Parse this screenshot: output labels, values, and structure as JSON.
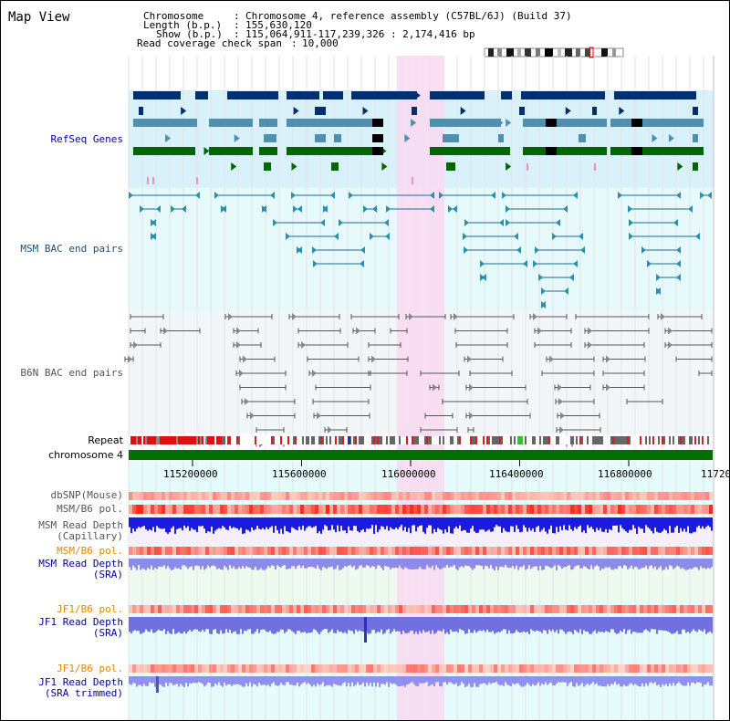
{
  "header": {
    "title": "Map View",
    "info": {
      "chromosome_label": "Chromosome",
      "chromosome_value": "Chromosome 4, reference assembly (C57BL/6J) (Build 37)",
      "length_label": "Length (b.p.)",
      "length_value": "155,630,120",
      "show_label": "Show (b.p.)",
      "show_value": "115,064,911-117,239,326 : 2,174,416 bp",
      "coverage_label": "Read coverage check span",
      "coverage_value": "10,000"
    }
  },
  "tracks": {
    "refseq": "RefSeq Genes",
    "msm_bac": "MSM BAC end pairs",
    "b6n_bac": "B6N BAC end pairs",
    "repeat": "Repeat",
    "chromosome": "chromosome 4",
    "dbsnp": "dbSNP(Mouse)",
    "msm_b6_pol": "MSM/B6 pol.",
    "msm_read_cap_1": "MSM Read Depth",
    "msm_read_cap_2": "(Capillary)",
    "msm_b6_pol_sra": "MSM/B6 pol.",
    "msm_read_sra_1": "MSM Read Depth",
    "msm_read_sra_2": "(SRA)",
    "jf1_b6_pol": "JF1/B6 pol.",
    "jf1_read_sra_1": "JF1 Read Depth",
    "jf1_read_sra_2": "(SRA)",
    "jf1_b6_pol_trim": "JF1/B6 pol.",
    "jf1_read_trim_1": "JF1 Read Depth",
    "jf1_read_trim_2": "(SRA trimmed)"
  },
  "axis": {
    "ticks": [
      "115200000",
      "115600000",
      "116000000",
      "116400000",
      "116800000",
      "11720"
    ]
  },
  "colors": {
    "refseq_bg": "#d9f1fb",
    "msm_bg": "#e6f9fb",
    "b6n_bg": "#f3f6f9",
    "highlight": "#f9d9f1",
    "chromosome": "#007000",
    "label_blue": "#0000a0",
    "label_orange": "#e08800",
    "label_gray": "#555555"
  }
}
